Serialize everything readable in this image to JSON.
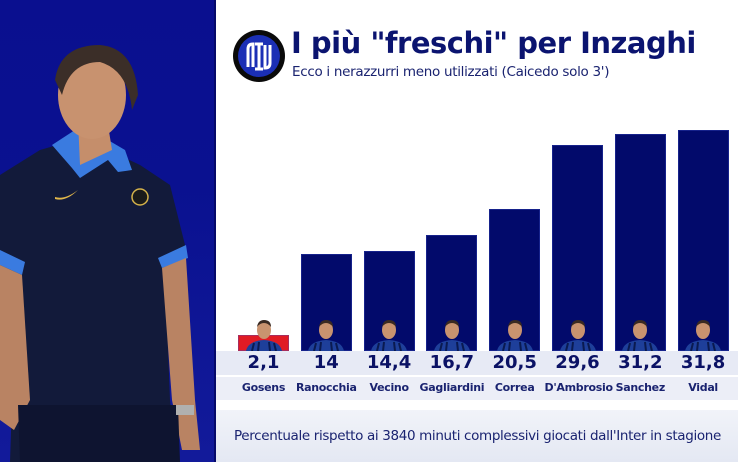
{
  "header": {
    "title": "I più \"freschi\" per Inzaghi",
    "subtitle": "Ecco i nerazzurri meno utilizzati (Caicedo solo 3')",
    "logo_icon": "inter-logo-icon"
  },
  "footer": {
    "note": "Percentuale rispetto ai 3840 minuti complessivi giocati dall'Inter in stagione"
  },
  "colors": {
    "bar": "#020a6b",
    "highlight_bar": "#e01b24",
    "left_panel": "#0a0f8f",
    "text": "#0b1470"
  },
  "players": [
    {
      "name": "Gosens",
      "value_label": "2,1",
      "value": 2.1,
      "highlight": true
    },
    {
      "name": "Ranocchia",
      "value_label": "14",
      "value": 14
    },
    {
      "name": "Vecino",
      "value_label": "14,4",
      "value": 14.4
    },
    {
      "name": "Gagliardini",
      "value_label": "16,7",
      "value": 16.7
    },
    {
      "name": "Correa",
      "value_label": "20,5",
      "value": 20.5
    },
    {
      "name": "D'Ambrosio",
      "value_label": "29,6",
      "value": 29.6
    },
    {
      "name": "Sanchez",
      "value_label": "31,2",
      "value": 31.2
    },
    {
      "name": "Vidal",
      "value_label": "31,8",
      "value": 31.8
    }
  ],
  "chart_data": {
    "type": "bar",
    "title": "I più \"freschi\" per Inzaghi",
    "subtitle": "Ecco i nerazzurri meno utilizzati (Caicedo solo 3')",
    "categories": [
      "Gosens",
      "Ranocchia",
      "Vecino",
      "Gagliardini",
      "Correa",
      "D'Ambrosio",
      "Sanchez",
      "Vidal"
    ],
    "values": [
      2.1,
      14,
      14.4,
      16.7,
      20.5,
      29.6,
      31.2,
      31.8
    ],
    "value_labels": [
      "2,1",
      "14",
      "14,4",
      "16,7",
      "20,5",
      "29,6",
      "31,2",
      "31,8"
    ],
    "xlabel": "",
    "ylabel": "",
    "unit": "% of 3840 total minutes",
    "annotation": "Percentuale rispetto ai 3840 minuti complessivi giocati dall'Inter in stagione",
    "highlighted_category": "Gosens",
    "grid": false,
    "legend": "none"
  }
}
